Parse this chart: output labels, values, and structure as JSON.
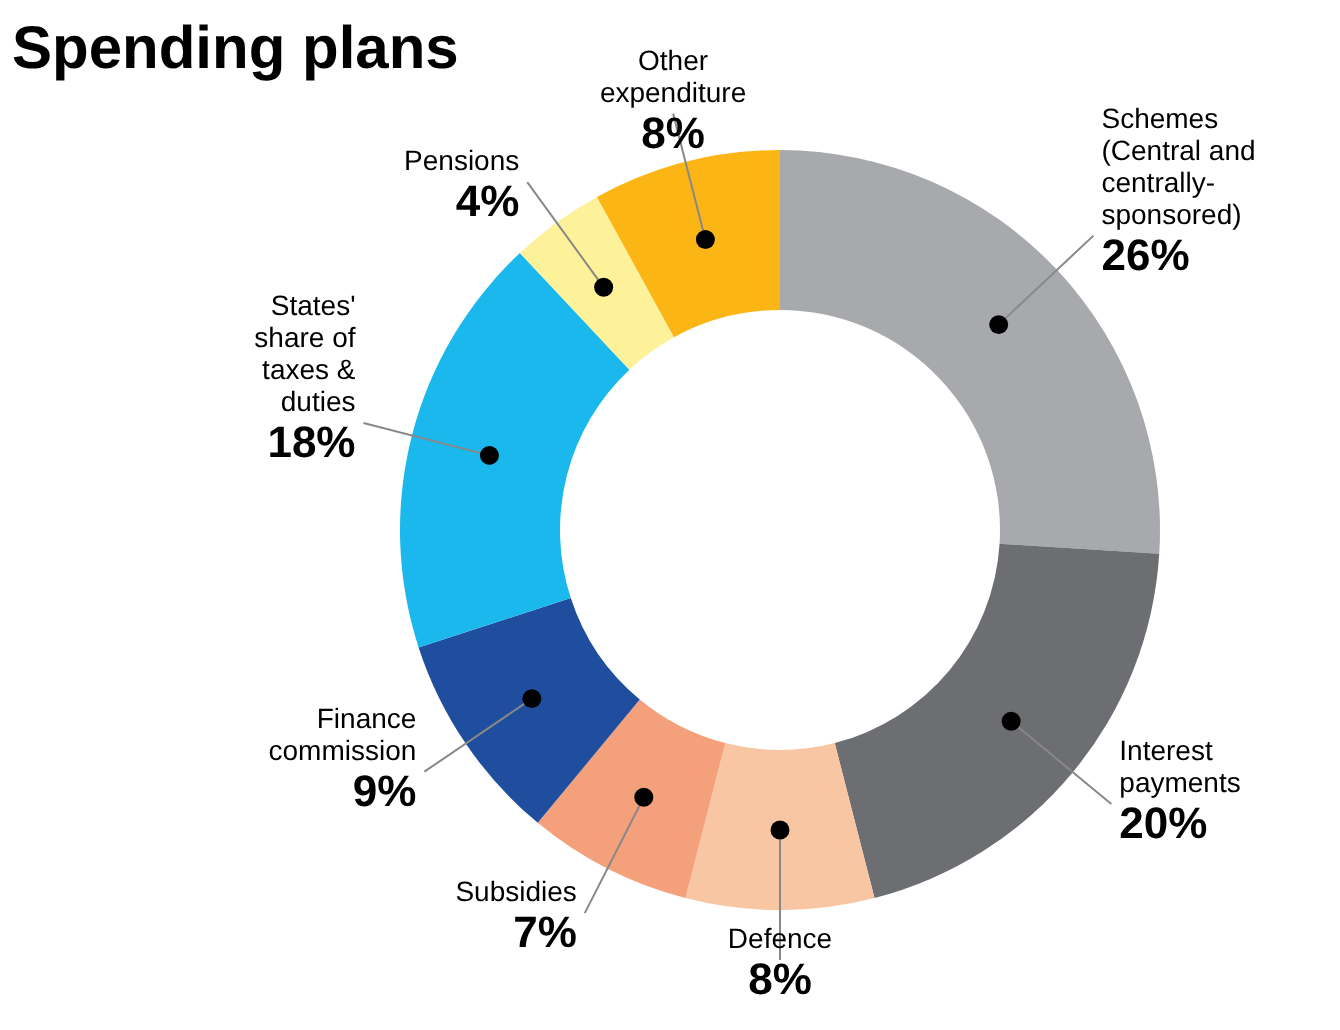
{
  "chart_data": {
    "type": "donut",
    "title": "Spending plans",
    "categories": [
      "Schemes (Central and centrally-sponsored)",
      "Interest payments",
      "Defence",
      "Subsidies",
      "Finance commission",
      "States' share of taxes & duties",
      "Pensions",
      "Other expenditure"
    ],
    "values": [
      26,
      20,
      8,
      7,
      9,
      18,
      4,
      8
    ],
    "value_labels": [
      "26%",
      "20%",
      "8%",
      "7%",
      "9%",
      "18%",
      "4%",
      "8%"
    ],
    "colors": [
      "#a7a9ac",
      "#6d6e71",
      "#f9c6a3",
      "#f4a07a",
      "#1f4e9e",
      "#1ab8ec",
      "#fdf29a",
      "#fbb615"
    ]
  }
}
